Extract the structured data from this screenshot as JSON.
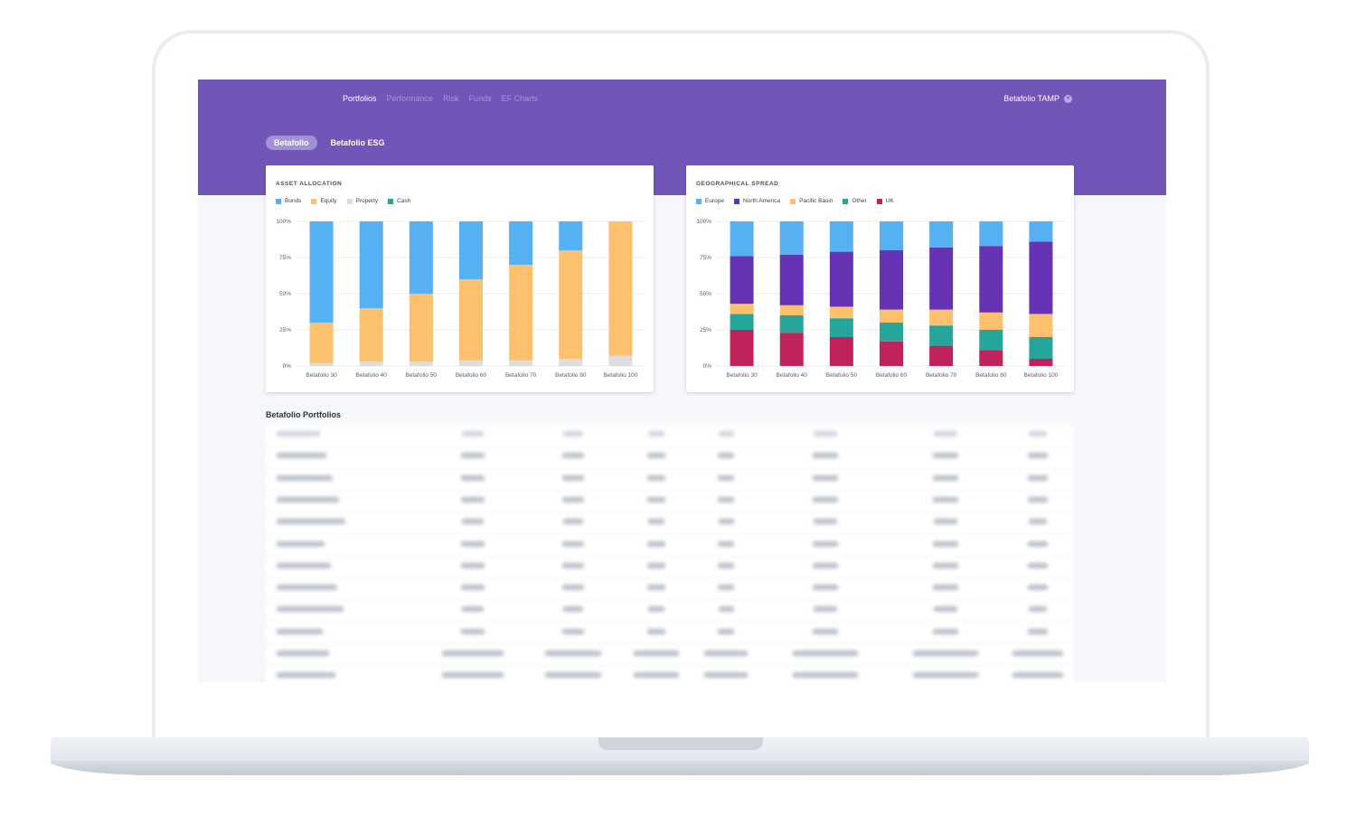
{
  "nav": {
    "items": [
      "Portfolios",
      "Performance",
      "Risk",
      "Funds",
      "EF Charts"
    ],
    "active": "Portfolios",
    "account": "Betafolio TAMP"
  },
  "tabs": [
    {
      "label": "Betafolio",
      "active": true
    },
    {
      "label": "Betafolio ESG",
      "active": false
    }
  ],
  "section_title": "Betafolio Portfolios",
  "colors": {
    "hero": "#7156b7",
    "bonds": "#56b0f2",
    "equity": "#fdc06f",
    "property": "#dddddd",
    "cash": "#26a69a",
    "europe": "#56b0f2",
    "north_america": "#6733b5",
    "pacific_basin": "#fdc06f",
    "other": "#26a69a",
    "uk": "#c0225b"
  },
  "chart_data": [
    {
      "type": "bar",
      "stacked": true,
      "title": "ASSET ALLOCATION",
      "categories": [
        "Betafolio 30",
        "Betafolio 40",
        "Betafolio 50",
        "Betafolio 60",
        "Betafolio 70",
        "Betafolio 80",
        "Betafolio 100"
      ],
      "series": [
        {
          "name": "Property",
          "color": "#dddddd",
          "values": [
            2,
            3,
            3,
            4,
            4,
            5,
            7
          ]
        },
        {
          "name": "Cash",
          "color": "#26a69a",
          "values": [
            0,
            0,
            0,
            0,
            0,
            0,
            0
          ]
        },
        {
          "name": "Equity",
          "color": "#fdc06f",
          "values": [
            28,
            37,
            47,
            56,
            66,
            75,
            93
          ]
        },
        {
          "name": "Bonds",
          "color": "#56b0f2",
          "values": [
            70,
            60,
            50,
            40,
            30,
            20,
            0
          ]
        }
      ],
      "legend": [
        "Bonds",
        "Equity",
        "Property",
        "Cash"
      ],
      "yticks": [
        "0%",
        "25%",
        "50%",
        "75%",
        "100%"
      ],
      "ylim": [
        0,
        100
      ],
      "legend_position": "top-left",
      "grid": true
    },
    {
      "type": "bar",
      "stacked": true,
      "title": "GEOGRAPHICAL SPREAD",
      "categories": [
        "Betafolio 30",
        "Betafolio 40",
        "Betafolio 50",
        "Betafolio 60",
        "Betafolio 70",
        "Betafolio 80",
        "Betafolio 100"
      ],
      "series": [
        {
          "name": "UK",
          "color": "#c0225b",
          "values": [
            25,
            23,
            20,
            17,
            14,
            11,
            5
          ]
        },
        {
          "name": "Other",
          "color": "#26a69a",
          "values": [
            11,
            12,
            13,
            13,
            14,
            14,
            15
          ]
        },
        {
          "name": "Pacific Basin",
          "color": "#fdc06f",
          "values": [
            7,
            7,
            8,
            9,
            11,
            12,
            16
          ]
        },
        {
          "name": "North America",
          "color": "#6733b5",
          "values": [
            33,
            35,
            38,
            41,
            43,
            46,
            50
          ]
        },
        {
          "name": "Europe",
          "color": "#56b0f2",
          "values": [
            24,
            23,
            21,
            20,
            18,
            17,
            14
          ]
        }
      ],
      "legend": [
        "Europe",
        "North America",
        "Pacific Basin",
        "Other",
        "UK"
      ],
      "yticks": [
        "0%",
        "25%",
        "50%",
        "75%",
        "100%"
      ],
      "ylim": [
        0,
        100
      ],
      "legend_position": "top-left",
      "grid": true
    }
  ]
}
